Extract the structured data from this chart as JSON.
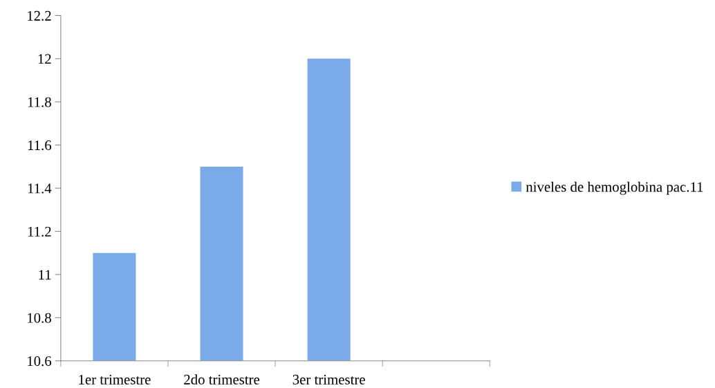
{
  "chart_data": {
    "type": "bar",
    "categories": [
      "1er trimestre",
      "2do trimestre",
      "3er trimestre",
      null
    ],
    "series": [
      {
        "name": "niveles de hemoglobina pac.11",
        "color": "#7aaae8",
        "values": [
          11.1,
          11.5,
          12.0,
          null
        ]
      }
    ],
    "ylim": [
      10.6,
      12.2
    ],
    "yticks": [
      10.6,
      10.8,
      11,
      11.2,
      11.4,
      11.6,
      11.8,
      12,
      12.2
    ],
    "grid": false,
    "legend": "right"
  }
}
